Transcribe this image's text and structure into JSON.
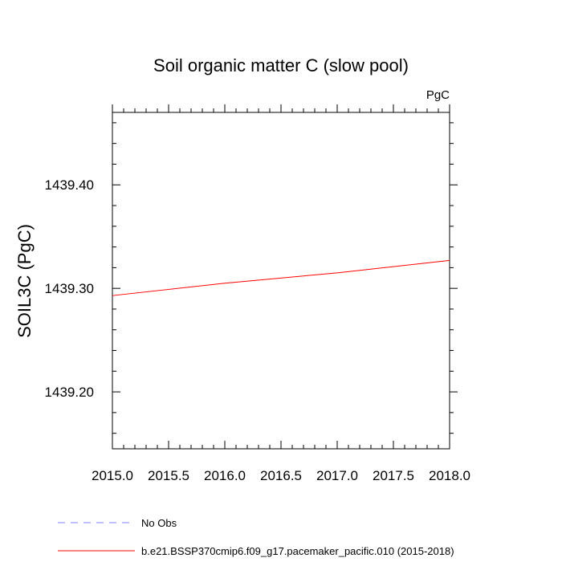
{
  "chart_data": {
    "type": "line",
    "title": "Soil organic matter C (slow pool)",
    "units": "PgC",
    "xlabel": "",
    "ylabel": "SOIL3C  (PgC)",
    "xlim": [
      2015.0,
      2018.0
    ],
    "ylim": [
      1439.145,
      1439.47
    ],
    "x_ticks": [
      2015.0,
      2015.5,
      2016.0,
      2016.5,
      2017.0,
      2017.5,
      2018.0
    ],
    "x_tick_labels": [
      "2015.0",
      "2015.5",
      "2016.0",
      "2016.5",
      "2017.0",
      "2017.5",
      "2018.0"
    ],
    "y_ticks": [
      1439.2,
      1439.3,
      1439.4
    ],
    "y_tick_labels": [
      "1439.20",
      "1439.30",
      "1439.40"
    ],
    "series": [
      {
        "name": "b.e21.BSSP370cmip6.f09_g17.pacemaker_pacific.010 (2015-2018)",
        "color": "#ff0000",
        "style": "solid",
        "x": [
          2015.0,
          2016.0,
          2017.0,
          2018.0
        ],
        "y": [
          1439.293,
          1439.305,
          1439.315,
          1439.327
        ]
      }
    ],
    "legend": [
      {
        "label": "No Obs",
        "color": "#8080ff",
        "style": "dashed"
      },
      {
        "label": "b.e21.BSSP370cmip6.f09_g17.pacemaker_pacific.010 (2015-2018)",
        "color": "#ff0000",
        "style": "solid"
      }
    ],
    "grid": false,
    "legend_position": "bottom-left"
  }
}
